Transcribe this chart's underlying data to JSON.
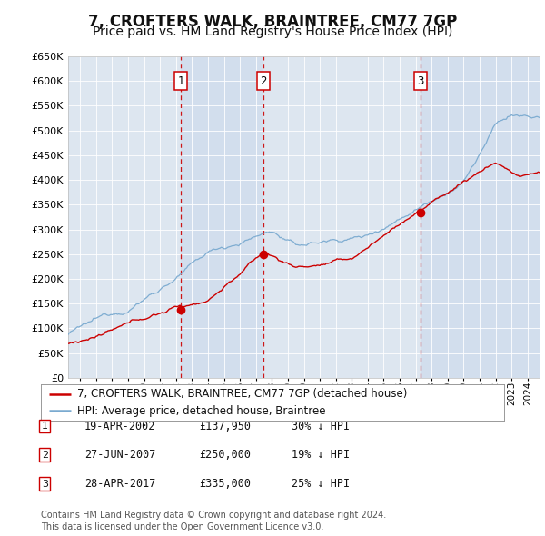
{
  "title": "7, CROFTERS WALK, BRAINTREE, CM77 7GP",
  "subtitle": "Price paid vs. HM Land Registry's House Price Index (HPI)",
  "ylim": [
    0,
    650000
  ],
  "yticks": [
    0,
    50000,
    100000,
    150000,
    200000,
    250000,
    300000,
    350000,
    400000,
    450000,
    500000,
    550000,
    600000,
    650000
  ],
  "ytick_labels": [
    "£0",
    "£50K",
    "£100K",
    "£150K",
    "£200K",
    "£250K",
    "£300K",
    "£350K",
    "£400K",
    "£450K",
    "£500K",
    "£550K",
    "£600K",
    "£650K"
  ],
  "xlim_start": 1995.25,
  "xlim_end": 2024.75,
  "background_color": "#ffffff",
  "plot_bg_color": "#dde6f0",
  "grid_color": "#ffffff",
  "red_line_color": "#cc0000",
  "blue_line_color": "#7aaad0",
  "dashed_line_color": "#cc0000",
  "shade_color": "#c8d8eb",
  "sale_points": [
    {
      "year": 2002.3,
      "price": 137950,
      "label": "1"
    },
    {
      "year": 2007.49,
      "price": 250000,
      "label": "2"
    },
    {
      "year": 2017.32,
      "price": 335000,
      "label": "3"
    }
  ],
  "legend_entries": [
    "7, CROFTERS WALK, BRAINTREE, CM77 7GP (detached house)",
    "HPI: Average price, detached house, Braintree"
  ],
  "table_rows": [
    [
      "1",
      "19-APR-2002",
      "£137,950",
      "30% ↓ HPI"
    ],
    [
      "2",
      "27-JUN-2007",
      "£250,000",
      "19% ↓ HPI"
    ],
    [
      "3",
      "28-APR-2017",
      "£335,000",
      "25% ↓ HPI"
    ]
  ],
  "footer": "Contains HM Land Registry data © Crown copyright and database right 2024.\nThis data is licensed under the Open Government Licence v3.0.",
  "title_fontsize": 12,
  "subtitle_fontsize": 10,
  "tick_fontsize": 8,
  "legend_fontsize": 8.5,
  "table_fontsize": 8.5,
  "footer_fontsize": 7
}
